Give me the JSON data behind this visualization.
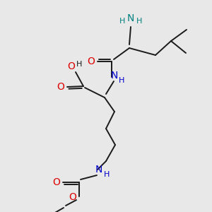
{
  "bg_color": "#e8e8e8",
  "bond_color": "#1a1a1a",
  "oxygen_color": "#dd0000",
  "nitrogen_teal_color": "#008080",
  "nitrogen_blue_color": "#0000cc",
  "lw": 1.4,
  "figsize": [
    3.0,
    3.0
  ],
  "dpi": 100,
  "xlim": [
    0,
    300
  ],
  "ylim": [
    0,
    300
  ]
}
